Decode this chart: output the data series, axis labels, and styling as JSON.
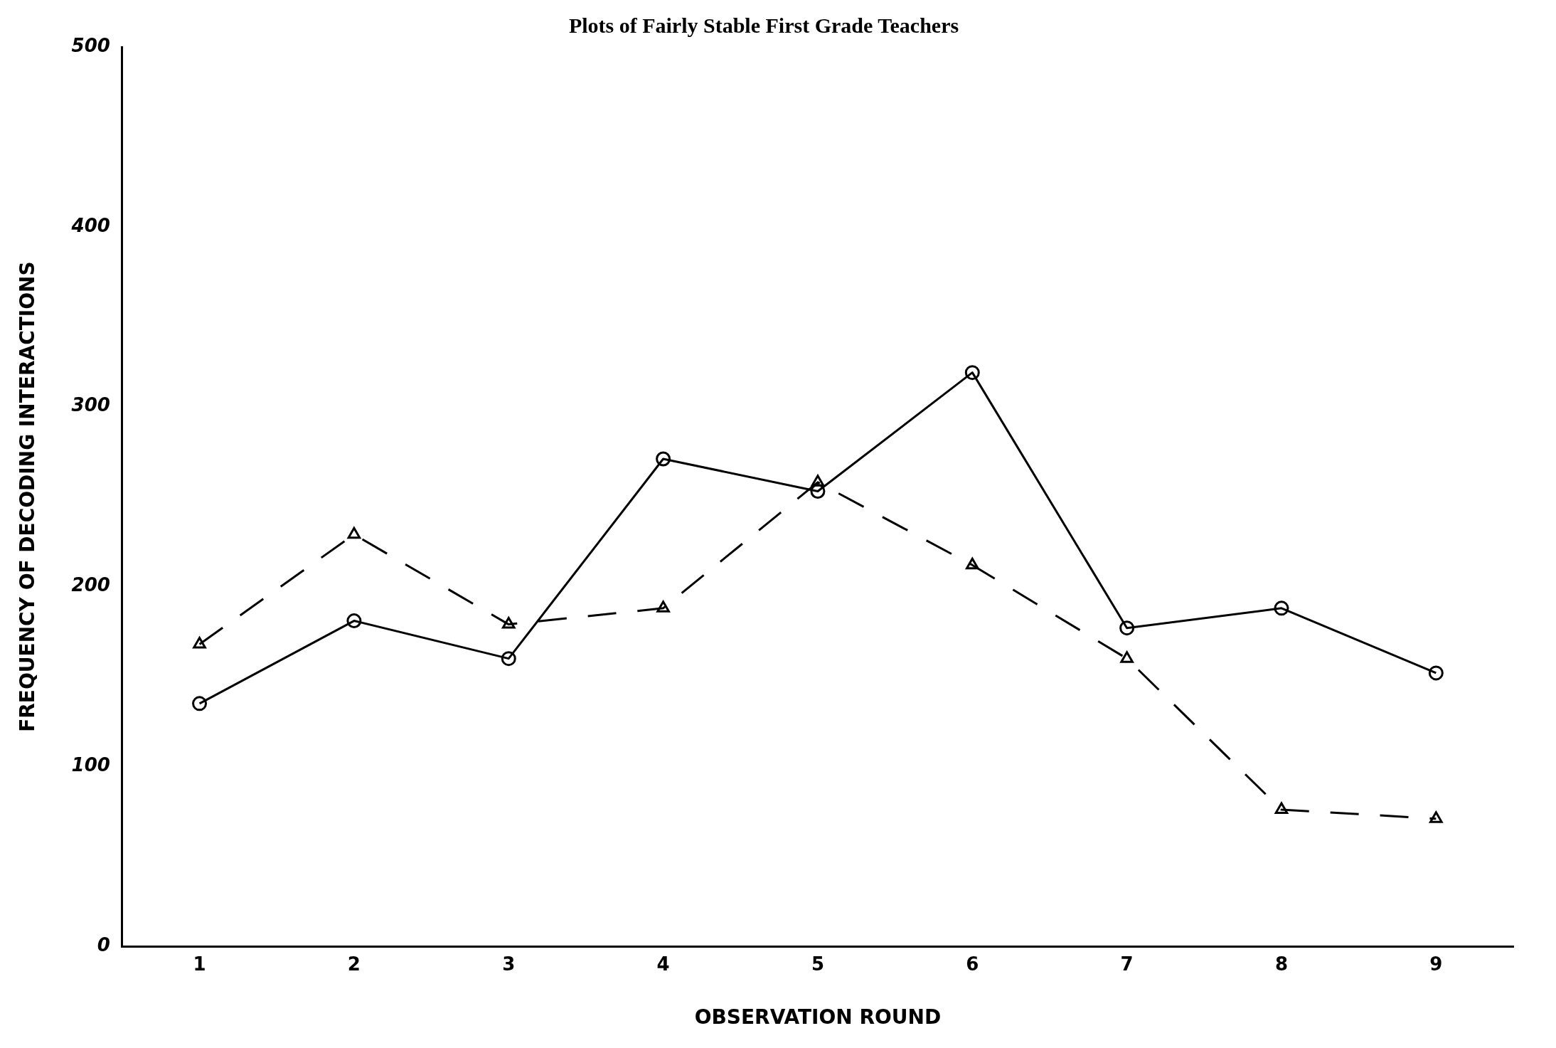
{
  "chart_data": {
    "type": "line",
    "title": "Plots of Fairly Stable First Grade Teachers",
    "xlabel": "OBSERVATION ROUND",
    "ylabel": "FREQUENCY OF DECODING INTERACTIONS",
    "categories": [
      "1",
      "2",
      "3",
      "4",
      "5",
      "6",
      "7",
      "8",
      "9"
    ],
    "series": [
      {
        "color": "#000000",
        "marker": "circle",
        "line_style": "solid",
        "values": [
          135,
          181,
          160,
          271,
          253,
          319,
          177,
          188,
          152
        ]
      },
      {
        "color": "#000000",
        "marker": "triangle",
        "line_style": "dashed",
        "values": [
          168,
          229,
          179,
          188,
          258,
          212,
          160,
          76,
          71
        ]
      }
    ],
    "ylim": [
      0,
      500
    ],
    "yticks": [
      0,
      100,
      200,
      300,
      400,
      500
    ],
    "grid": false,
    "legend": false
  }
}
